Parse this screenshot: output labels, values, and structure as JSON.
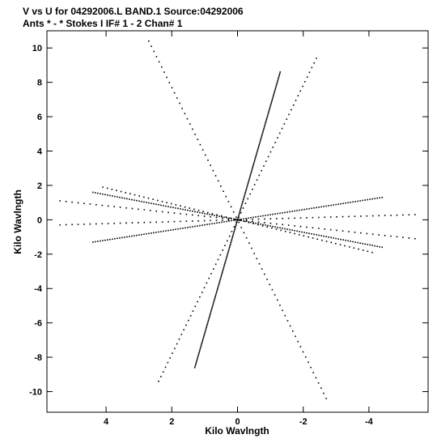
{
  "chart_data": {
    "type": "scatter",
    "title": "V vs U for 04292006.L BAND.1   Source:04292006",
    "subtitle": "Ants * - *    Stokes I   IF# 1 - 2   Chan# 1",
    "xlabel": "Kilo Wavlngth",
    "ylabel": "Kilo Wavlngth",
    "xlim": [
      5.8,
      -5.8
    ],
    "ylim": [
      -11.2,
      11.0
    ],
    "x_ticks": [
      4,
      2,
      0,
      -2,
      -4
    ],
    "x_tick_labels": [
      "4",
      "2",
      "0",
      "-2",
      "-4"
    ],
    "y_ticks": [
      10,
      8,
      6,
      4,
      2,
      0,
      -2,
      -4,
      -6,
      -8,
      -10
    ],
    "y_tick_labels": [
      "10",
      "8",
      "6",
      "4",
      "2",
      "0",
      "-2",
      "-4",
      "-6",
      "-8",
      "-10"
    ],
    "grid": false,
    "point_color": "#000000",
    "tracks": [
      {
        "u_start": -1.3,
        "v_start": 8.6,
        "u_end": 1.3,
        "v_end": -8.6,
        "n": 200
      },
      {
        "u_start": -4.4,
        "v_start": 1.3,
        "u_end": 4.4,
        "v_end": -1.3,
        "n": 120
      },
      {
        "u_start": -4.4,
        "v_start": -1.6,
        "u_end": 4.4,
        "v_end": 1.6,
        "n": 120
      },
      {
        "u_start": 2.7,
        "v_start": 10.4,
        "u_end": -2.7,
        "v_end": -10.4,
        "n": 70
      },
      {
        "u_start": -2.4,
        "v_start": 9.4,
        "u_end": 2.4,
        "v_end": -9.4,
        "n": 70
      },
      {
        "u_start": 4.1,
        "v_start": 1.9,
        "u_end": -4.1,
        "v_end": -1.9,
        "n": 60
      },
      {
        "u_start": 5.4,
        "v_start": 1.1,
        "u_end": -5.4,
        "v_end": -1.1,
        "n": 60
      },
      {
        "u_start": -5.4,
        "v_start": 0.3,
        "u_end": 5.4,
        "v_end": -0.3,
        "n": 60
      }
    ]
  }
}
